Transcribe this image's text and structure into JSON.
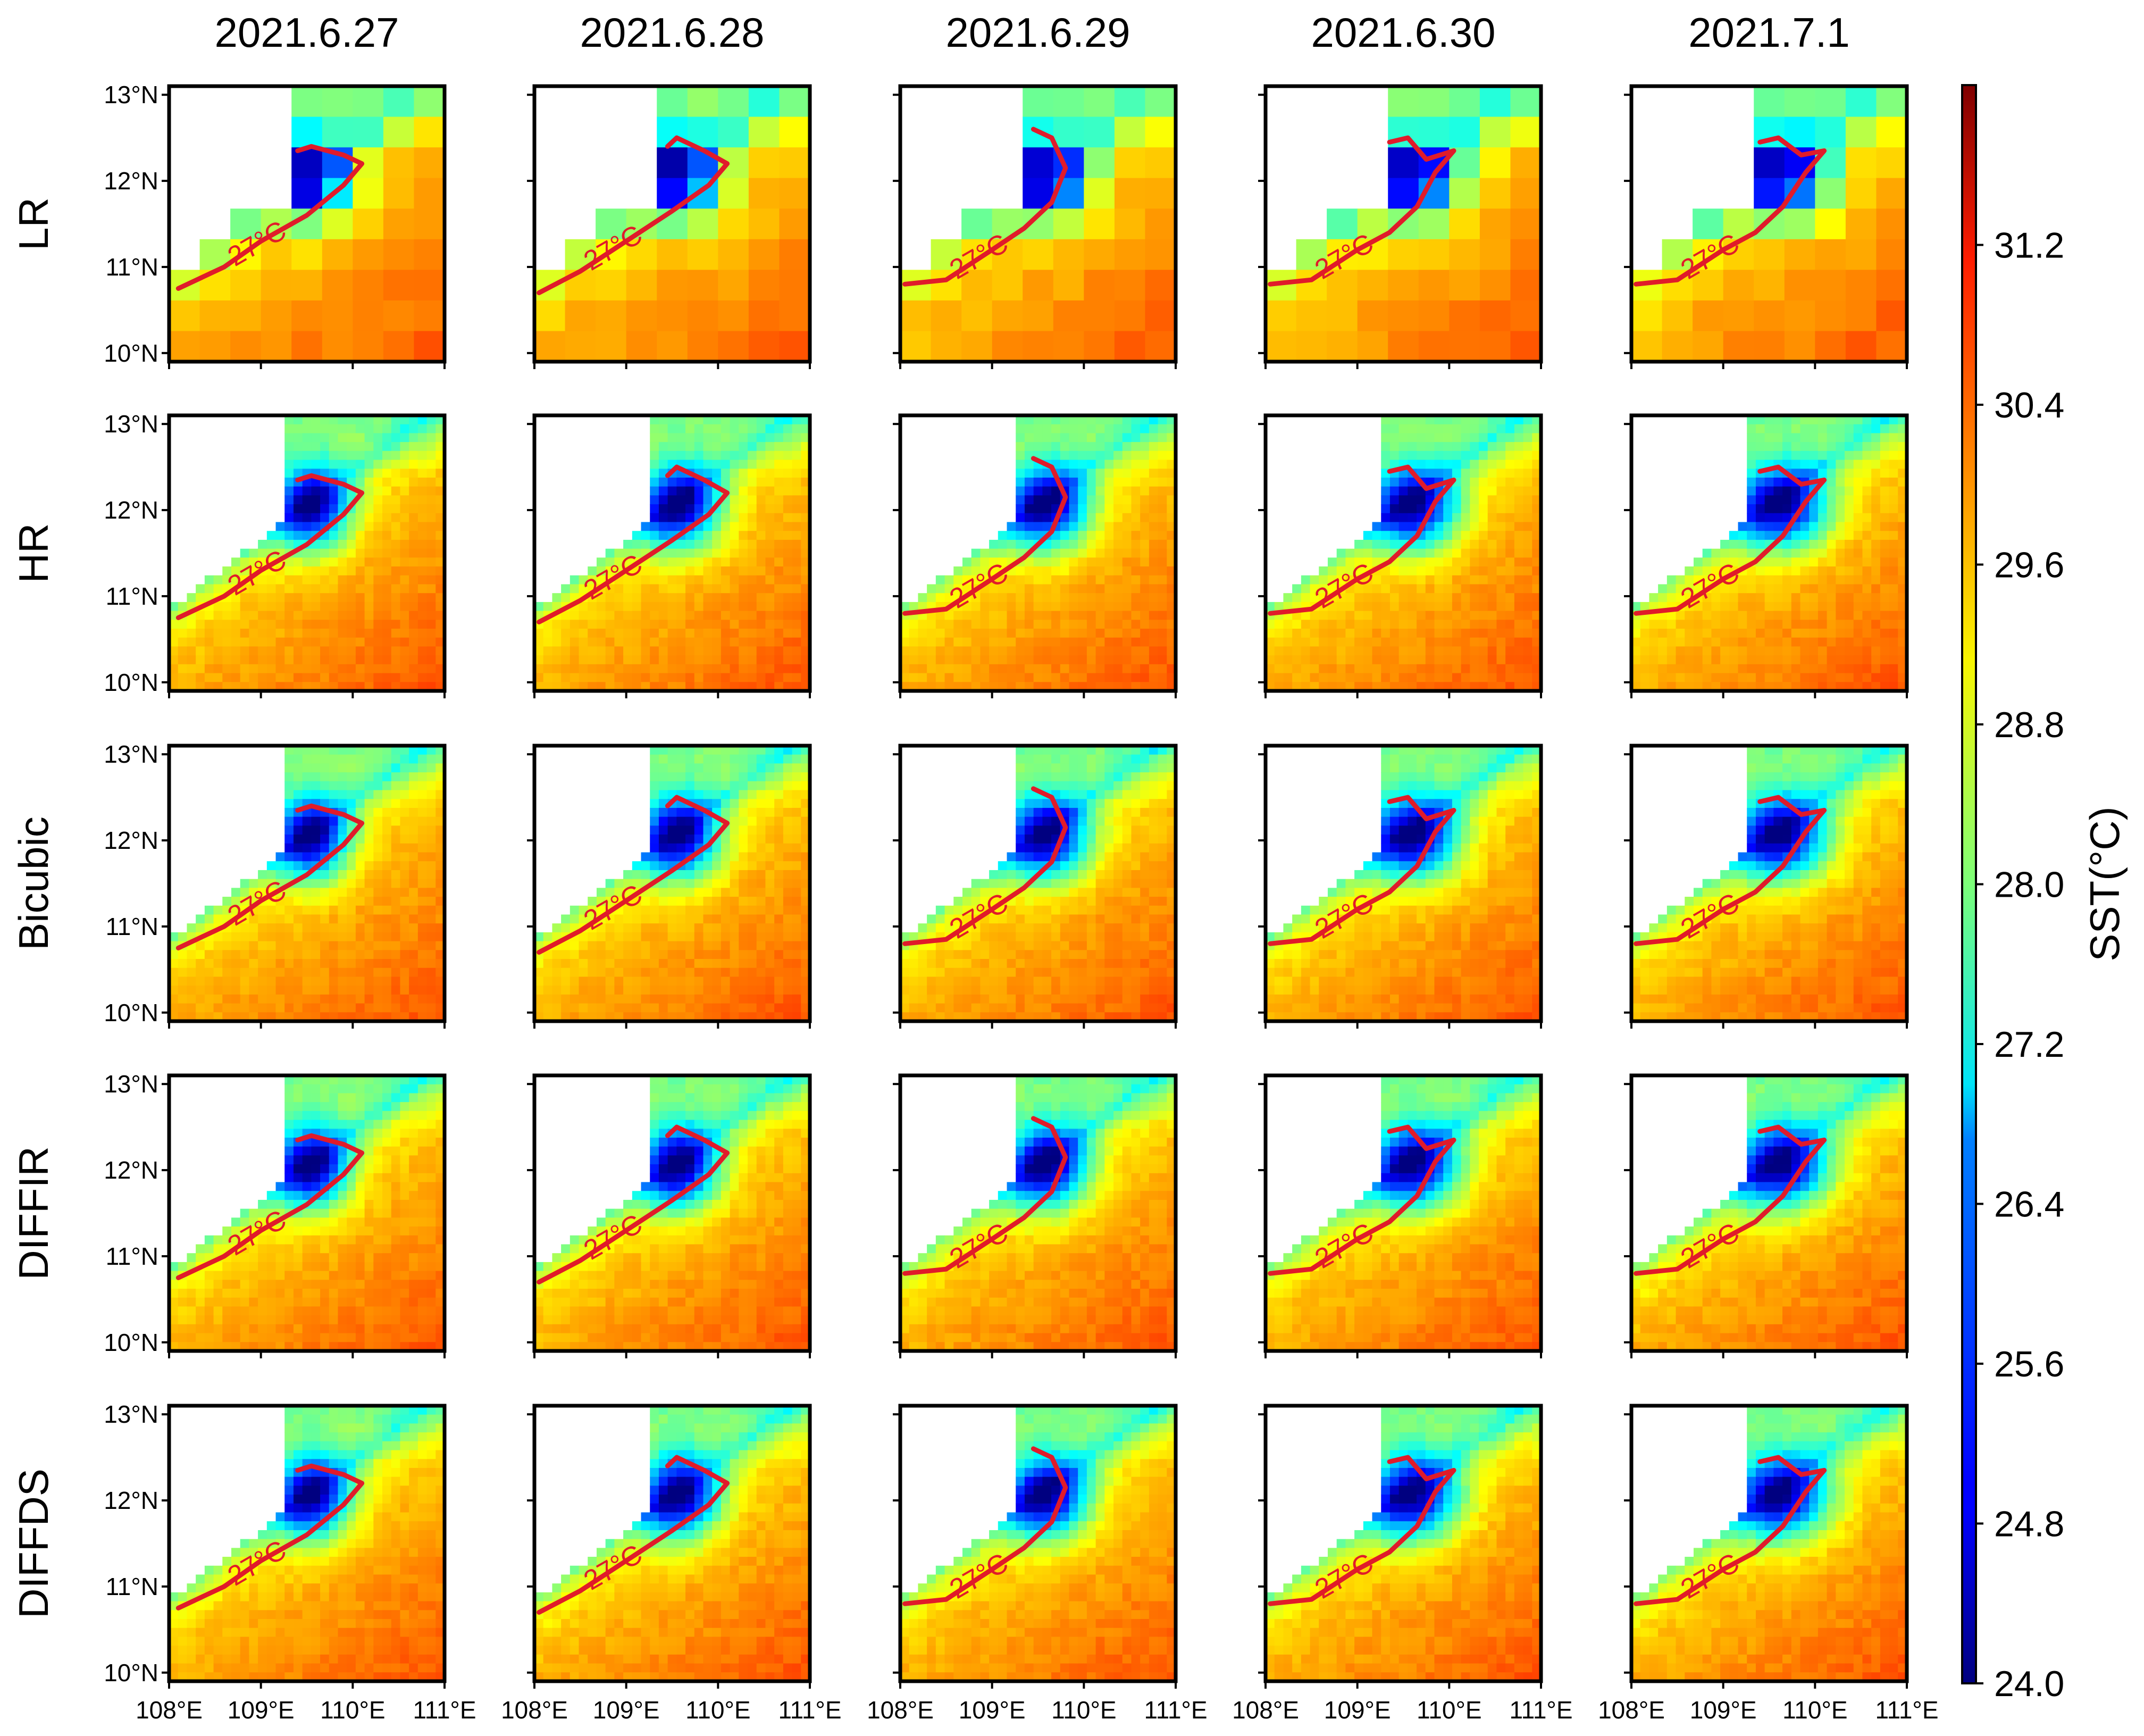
{
  "figure": {
    "colorbar_label": "SST(°C)",
    "contour_label": "27°C"
  },
  "chart_data": {
    "type": "heatmap",
    "title": "",
    "columns": [
      "2021.6.27",
      "2021.6.28",
      "2021.6.29",
      "2021.6.30",
      "2021.7.1"
    ],
    "rows": [
      "LR",
      "HR",
      "Bicubic",
      "DIFFIR",
      "DIFFDS"
    ],
    "x_ticks": [
      "108°E",
      "109°E",
      "110°E",
      "111°E"
    ],
    "y_ticks": [
      "13°N",
      "12°N",
      "11°N",
      "10°N"
    ],
    "x_range_deg_E": [
      108,
      111
    ],
    "y_range_deg_N": [
      9.9,
      13.1
    ],
    "colorbar": {
      "min": 24.0,
      "max": 32.0,
      "ticks": [
        "24.0",
        "24.8",
        "25.6",
        "26.4",
        "27.2",
        "28.0",
        "28.8",
        "29.6",
        "30.4",
        "31.2"
      ],
      "colormap": "jet"
    },
    "contour_level_c": 27,
    "contour_color": "#e01b2a",
    "land_color": "#ffffff",
    "frame_color": "#000000"
  }
}
